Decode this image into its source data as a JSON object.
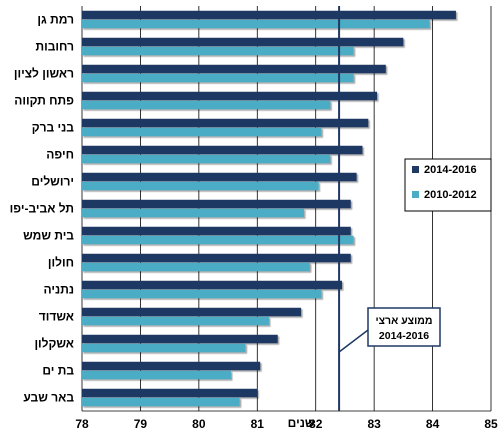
{
  "chart_data": {
    "type": "bar",
    "orientation": "horizontal",
    "categories": [
      "רמת גן",
      "רחובות",
      "ראשון לציון",
      "פתח תקווה",
      "בני ברק",
      "חיפה",
      "ירושלים",
      "תל אביב-יפו",
      "בית שמש",
      "חולון",
      "נתניה",
      "אשדוד",
      "אשקלון",
      "בת ים",
      "באר שבע"
    ],
    "series": [
      {
        "name": "2014-2016",
        "color": "#1f3864",
        "values": [
          84.4,
          83.5,
          83.2,
          83.05,
          82.9,
          82.8,
          82.7,
          82.6,
          82.6,
          82.6,
          82.45,
          81.75,
          81.35,
          81.05,
          81.0
        ]
      },
      {
        "name": "2010-2012",
        "color": "#4bacc6",
        "values": [
          83.95,
          82.65,
          82.65,
          82.25,
          82.1,
          82.25,
          82.05,
          81.8,
          82.65,
          81.9,
          82.1,
          81.2,
          80.8,
          80.55,
          80.7
        ]
      }
    ],
    "xlim": [
      78,
      85
    ],
    "xticks": [
      "78",
      "79",
      "80",
      "81",
      "82",
      "83",
      "84",
      "85"
    ],
    "xlabel": "שנים",
    "reference_line": {
      "value": 82.4,
      "label_line1": "ממוצע ארצי",
      "label_line2": "2014-2016"
    },
    "legend_position": "right",
    "grid": {
      "vertical": true
    }
  }
}
